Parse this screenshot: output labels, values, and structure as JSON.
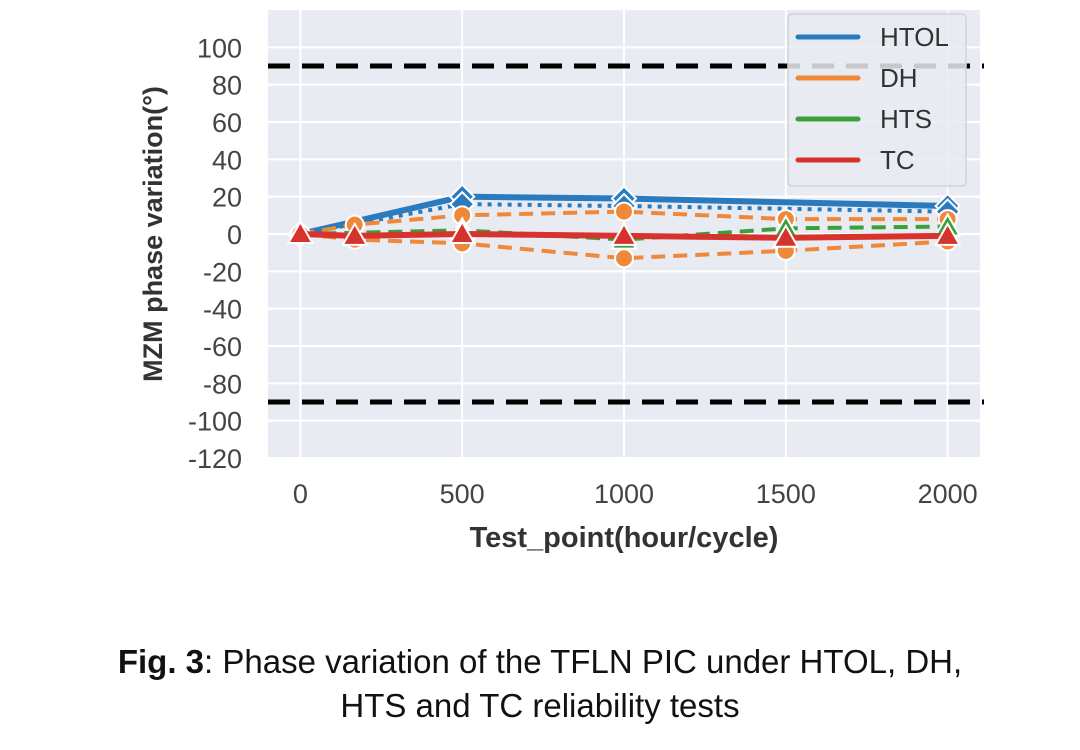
{
  "chart_data": {
    "type": "line",
    "xlabel": "Test_point(hour/cycle)",
    "ylabel": "MZM phase variation(°)",
    "xlim": [
      -100,
      2100
    ],
    "ylim": [
      -120,
      120
    ],
    "xticks": [
      0,
      500,
      1000,
      1500,
      2000
    ],
    "yticks": [
      100,
      80,
      60,
      40,
      20,
      0,
      -20,
      -40,
      -60,
      -80,
      -100,
      -120
    ],
    "grid": true,
    "legend_position": "top-right",
    "reference_lines": [
      {
        "y": 90,
        "style": "dashed",
        "color": "#000000"
      },
      {
        "y": -90,
        "style": "dashed",
        "color": "#000000"
      }
    ],
    "series": [
      {
        "name": "HTOL",
        "color": "#2a7bbd",
        "marker": "diamond",
        "x": [
          0,
          500,
          1000,
          2000
        ],
        "y": [
          0,
          20,
          19,
          15
        ]
      },
      {
        "name": "HTOL",
        "color": "#2a7bbd",
        "marker": "diamond",
        "style": "dotted",
        "x": [
          0,
          500,
          1000,
          2000
        ],
        "y": [
          0,
          16,
          15,
          12
        ]
      },
      {
        "name": "DH",
        "color": "#f0883a",
        "marker": "circle",
        "style": "dashed",
        "x": [
          0,
          168,
          500,
          1000,
          1500,
          2000
        ],
        "y": [
          0,
          5,
          10,
          12,
          8,
          8
        ]
      },
      {
        "name": "DH",
        "color": "#f0883a",
        "marker": "circle",
        "style": "dashed",
        "x": [
          0,
          168,
          500,
          1000,
          1500,
          2000
        ],
        "y": [
          0,
          -3,
          -5,
          -13,
          -9,
          -4
        ]
      },
      {
        "name": "HTS",
        "color": "#3aa03a",
        "marker": "triangle",
        "style": "dashed",
        "x": [
          0,
          500,
          1000,
          1500,
          2000
        ],
        "y": [
          0,
          2,
          -3,
          3,
          4
        ]
      },
      {
        "name": "TC",
        "color": "#d6322e",
        "marker": "triangle",
        "x": [
          0,
          168,
          500,
          1000,
          1500,
          2000
        ],
        "y": [
          0,
          -1,
          0,
          -1,
          -2,
          -1
        ]
      }
    ],
    "legend": [
      {
        "label": "HTOL",
        "color": "#2a7bbd"
      },
      {
        "label": "DH",
        "color": "#f0883a"
      },
      {
        "label": "HTS",
        "color": "#3aa03a"
      },
      {
        "label": "TC",
        "color": "#d6322e"
      }
    ]
  },
  "caption": {
    "label": "Fig. 3",
    "text": ": Phase variation of the TFLN PIC under HTOL, DH,",
    "line2": "HTS and TC reliability tests"
  }
}
